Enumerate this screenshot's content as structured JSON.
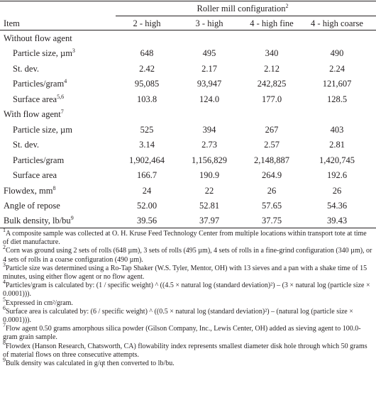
{
  "table": {
    "spanner": {
      "text": "Roller mill configuration",
      "sup": "2"
    },
    "header": [
      "Item",
      "2 - high",
      "3 - high",
      "4 - high fine",
      "4 - high coarse"
    ],
    "groups": [
      {
        "title": {
          "text": "Without flow agent"
        },
        "rows": [
          {
            "label": "Particle size, µm",
            "sup": "3",
            "cells": [
              "648",
              "495",
              "340",
              "490"
            ]
          },
          {
            "label": "St. dev.",
            "cells": [
              "2.42",
              "2.17",
              "2.12",
              "2.24"
            ]
          },
          {
            "label": "Particles/gram",
            "sup": "4",
            "cells": [
              "95,085",
              "93,947",
              "242,825",
              "121,607"
            ]
          },
          {
            "label": "Surface area",
            "sup": "5,6",
            "cells": [
              "103.8",
              "124.0",
              "177.0",
              "128.5"
            ]
          }
        ]
      },
      {
        "title": {
          "text": "With flow agent",
          "sup": "7"
        },
        "rows": [
          {
            "label": "Particle size, µm",
            "cells": [
              "525",
              "394",
              "267",
              "403"
            ]
          },
          {
            "label": "St. dev.",
            "cells": [
              "3.14",
              "2.73",
              "2.57",
              "2.81"
            ]
          },
          {
            "label": "Particles/gram",
            "cells": [
              "1,902,464",
              "1,156,829",
              "2,148,887",
              "1,420,745"
            ]
          },
          {
            "label": "Surface area",
            "cells": [
              "166.7",
              "190.9",
              "264.9",
              "192.6"
            ]
          }
        ]
      }
    ],
    "rows": [
      {
        "label": "Flowdex, mm",
        "sup": "8",
        "cells": [
          "24",
          "22",
          "26",
          "26"
        ]
      },
      {
        "label": "Angle of repose",
        "cells": [
          "52.00",
          "52.81",
          "57.65",
          "54.36"
        ]
      },
      {
        "label": "Bulk density, lb/bu",
        "sup": "9",
        "cells": [
          "39.56",
          "37.97",
          "37.75",
          "39.43"
        ]
      }
    ]
  },
  "footnotes": [
    {
      "mark": "1",
      "text": "A composite sample was collected at O. H. Kruse Feed Technology Center from multiple locations within transport tote at time of diet manufacture."
    },
    {
      "mark": "2",
      "text": "Corn was ground using 2 sets of rolls (648 µm), 3 sets of rolls (495 µm), 4 sets of rolls in a fine-grind configuration (340 µm), or 4 sets of rolls in a coarse configuration (490 µm)."
    },
    {
      "mark": "3",
      "text": "Particle size was determined using a Ro-Tap Shaker (W.S. Tyler, Mentor, OH) with 13 sieves and a pan with a shake time of 15 minutes, using either flow agent or no flow agent."
    },
    {
      "mark": "4",
      "text": "Particles/gram is calculated by: (1 / specific weight) ^ ((4.5 × natural log (standard deviation)²) – (3 × natural log (particle size × 0.0001)))."
    },
    {
      "mark": "5",
      "text": "Expressed in cm²/gram."
    },
    {
      "mark": "6",
      "text": "Surface area is calculated by: (6 / specific weight) ^ ((0.5 × natural log (standard deviation)²) – (natural log (particle size × 0.0001)))."
    },
    {
      "mark": "7",
      "text": "Flow agent 0.50 grams amorphous silica powder (Gilson Company, Inc., Lewis Center, OH) added as sieving agent to 100.0-gram grain sample."
    },
    {
      "mark": "8",
      "text": "Flowdex (Hanson Research, Chatsworth, CA) flowability index represents smallest diameter disk hole through which 50 grams of material flows on three consecutive attempts."
    },
    {
      "mark": "9",
      "text": "Bulk density was calculated in g/qt then converted to lb/bu."
    }
  ]
}
